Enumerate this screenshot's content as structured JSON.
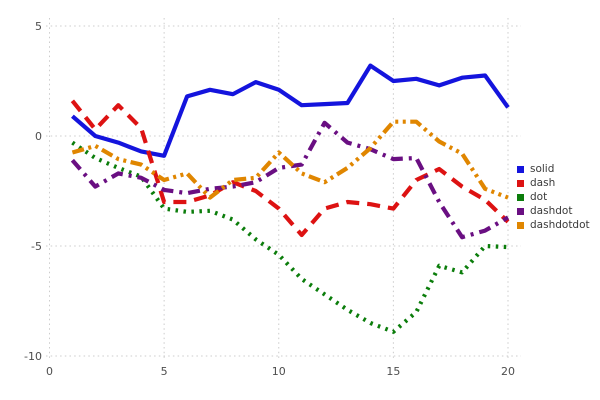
{
  "chart_data": {
    "type": "line",
    "title": "",
    "xlabel": "",
    "ylabel": "",
    "xlim": [
      0,
      20
    ],
    "ylim": [
      -10,
      5
    ],
    "grid": "dotted",
    "legend_position": "right-middle",
    "x_ticks": [
      {
        "value": 0,
        "label": "0"
      },
      {
        "value": 5,
        "label": "5"
      },
      {
        "value": 10,
        "label": "10"
      },
      {
        "value": 15,
        "label": "15"
      },
      {
        "value": 20,
        "label": "20"
      }
    ],
    "y_ticks": [
      {
        "value": 5,
        "label": "5"
      },
      {
        "value": 0,
        "label": "0"
      },
      {
        "value": -5,
        "label": "-5"
      },
      {
        "value": -10,
        "label": "-10"
      }
    ],
    "x": [
      1,
      2,
      3,
      4,
      5,
      6,
      7,
      8,
      9,
      10,
      11,
      12,
      13,
      14,
      15,
      16,
      17,
      18,
      19,
      20
    ],
    "series": [
      {
        "name": "solid",
        "style": "solid",
        "color": "#1414dd",
        "values": [
          0.9,
          0.0,
          -0.3,
          -0.7,
          -0.9,
          1.8,
          2.1,
          1.9,
          2.45,
          2.1,
          1.4,
          1.45,
          1.5,
          3.2,
          2.5,
          2.6,
          2.3,
          2.65,
          2.75,
          1.3
        ]
      },
      {
        "name": "dash",
        "style": "dash",
        "color": "#dd1212",
        "values": [
          1.6,
          0.3,
          1.4,
          0.35,
          -3.0,
          -3.0,
          -2.7,
          -2.1,
          -2.5,
          -3.3,
          -4.5,
          -3.3,
          -3.0,
          -3.1,
          -3.3,
          -2.0,
          -1.5,
          -2.3,
          -2.9,
          -3.9
        ]
      },
      {
        "name": "dot",
        "style": "dot",
        "color": "#0b7d0b",
        "values": [
          -0.3,
          -1.0,
          -1.45,
          -1.85,
          -3.3,
          -3.45,
          -3.4,
          -3.8,
          -4.7,
          -5.4,
          -6.5,
          -7.2,
          -7.9,
          -8.5,
          -8.9,
          -8.0,
          -5.9,
          -6.2,
          -5.0,
          -5.05
        ]
      },
      {
        "name": "dashdot",
        "style": "dashdot",
        "color": "#6a0f82",
        "values": [
          -1.1,
          -2.3,
          -1.7,
          -1.9,
          -2.45,
          -2.6,
          -2.4,
          -2.3,
          -2.1,
          -1.45,
          -1.3,
          0.6,
          -0.3,
          -0.6,
          -1.05,
          -1.0,
          -3.0,
          -4.6,
          -4.3,
          -3.7
        ]
      },
      {
        "name": "dashdotdot",
        "style": "dashdotdot",
        "color": "#e08600",
        "values": [
          -0.75,
          -0.45,
          -1.05,
          -1.3,
          -2.0,
          -1.7,
          -2.8,
          -2.0,
          -1.9,
          -0.75,
          -1.7,
          -2.1,
          -1.45,
          -0.55,
          0.65,
          0.65,
          -0.25,
          -0.8,
          -2.4,
          -2.8
        ]
      }
    ],
    "legend_entries": [
      "solid",
      "dash",
      "dot",
      "dashdot",
      "dashdotdot"
    ]
  },
  "style": {
    "grid_color": "#cccccc",
    "tick_label_color": "#4d4d4d",
    "background": "#ffffff"
  }
}
